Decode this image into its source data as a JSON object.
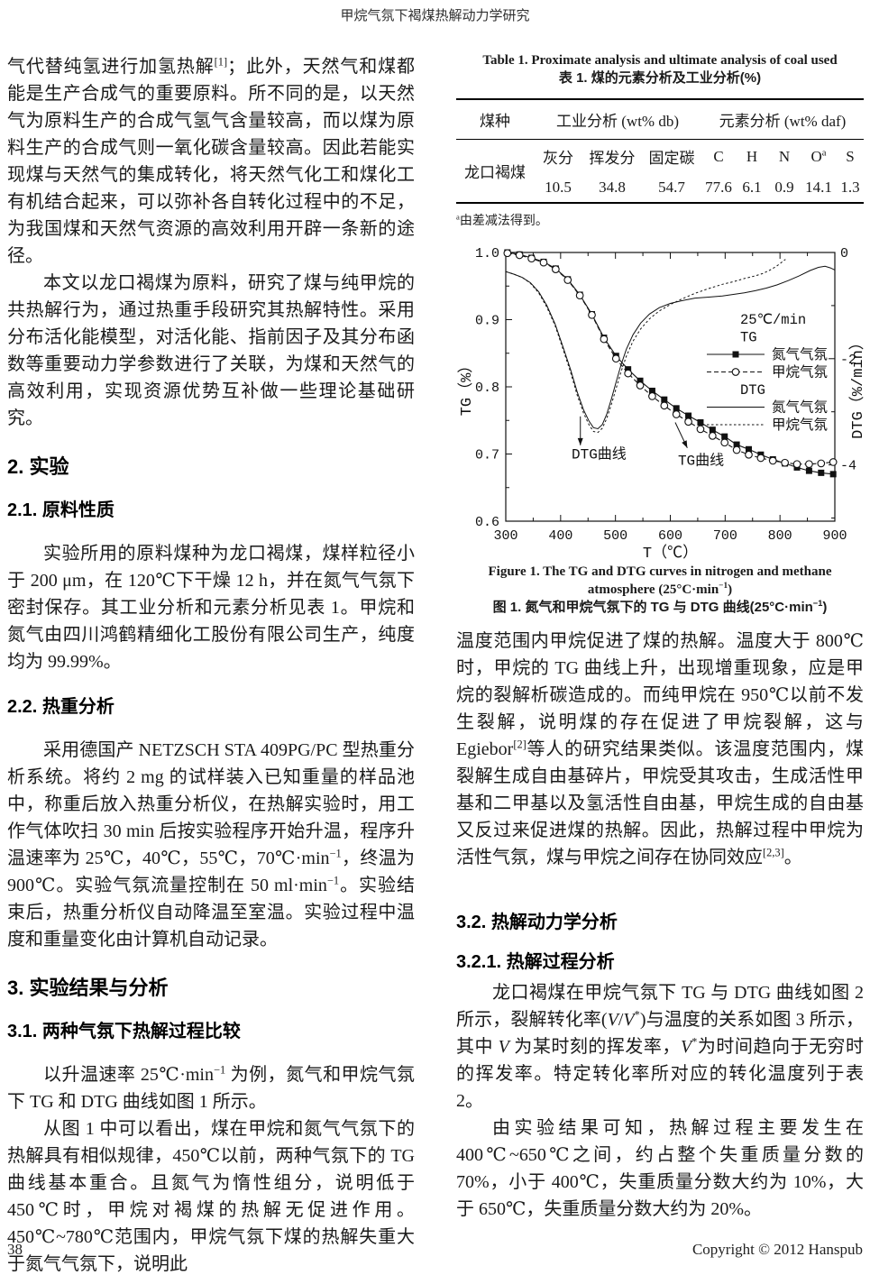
{
  "header": {
    "running_title": "甲烷气氛下褐煤热解动力学研究"
  },
  "left": {
    "p1": "气代替纯氢进行加氢热解^{[1]}；此外，天然气和煤都能是生产合成气的重要原料。所不同的是，以天然气为原料生产的合成气氢气含量较高，而以煤为原料生产的合成气则一氧化碳含量较高。因此若能实现煤与天然气的集成转化，将天然气化工和煤化工有机结合起来，可以弥补各自转化过程中的不足，为我国煤和天然气资源的高效利用开辟一条新的途径。",
    "p2": "本文以龙口褐煤为原料，研究了煤与纯甲烷的共热解行为，通过热重手段研究其热解特性。采用分布活化能模型，对活化能、指前因子及其分布函数等重要动力学参数进行了关联，为煤和天然气的高效利用，实现资源优势互补做一些理论基础研究。",
    "h2": "2. 实验",
    "h2_1": "2.1. 原料性质",
    "p3": "实验所用的原料煤种为龙口褐煤，煤样粒径小于 200 μm，在 120℃下干燥 12 h，并在氮气气氛下密封保存。其工业分析和元素分析见表 1。甲烷和氮气由四川鸿鹤精细化工股份有限公司生产，纯度均为 99.99%。",
    "h2_2": "2.2. 热重分析",
    "p4": "采用德国产 NETZSCH STA 409PG/PC 型热重分析系统。将约 2 mg 的试样装入已知重量的样品池中，称重后放入热重分析仪，在热解实验时，用工作气体吹扫 30 min 后按实验程序开始升温，程序升温速率为 25℃，40℃，55℃，70℃·min^{−1}，终温为 900℃。实验气氛流量控制在 50 ml·min^{−1}。实验结束后，热重分析仪自动降温至室温。实验过程中温度和重量变化由计算机自动记录。",
    "h3": "3. 实验结果与分析",
    "h3_1": "3.1. 两种气氛下热解过程比较",
    "p5": "以升温速率 25℃·min^{−1} 为例，氮气和甲烷气氛下 TG 和 DTG 曲线如图 1 所示。",
    "p6": "从图 1 中可以看出，煤在甲烷和氮气气氛下的热解具有相似规律，450℃以前，两种气氛下的 TG 曲线基本重合。且氮气为惰性组分，说明低于 450℃时，甲烷对褐煤的热解无促进作用。450℃~780℃范围内，甲烷气氛下煤的热解失重大于氮气气氛下，说明此"
  },
  "table1": {
    "caption_en": "Table 1. Proximate analysis and ultimate analysis of coal used",
    "caption_zh": "表 1. 煤的元素分析及工业分析(%)",
    "col_groups": [
      "煤种",
      "工业分析 (wt% db)",
      "元素分析 (wt% daf)"
    ],
    "sub_headers": [
      "灰分",
      "挥发分",
      "固定碳",
      "C",
      "H",
      "N",
      "O^{a}",
      "S"
    ],
    "row_label": "龙口褐煤",
    "values": [
      "10.5",
      "34.8",
      "54.7",
      "77.6",
      "6.1",
      "0.9",
      "14.1",
      "1.3"
    ],
    "footnote": "^{a}由差减法得到。"
  },
  "figure1": {
    "caption_en": "Figure 1. The TG and DTG curves in nitrogen and methane atmosphere (25°C·min^{−1})",
    "caption_zh": "图 1. 氮气和甲烷气氛下的 TG 与 DTG 曲线(25°C·min^{−1})"
  },
  "right": {
    "p1": "温度范围内甲烷促进了煤的热解。温度大于 800℃时，甲烷的 TG 曲线上升，出现增重现象，应是甲烷的裂解析碳造成的。而纯甲烷在 950℃以前不发生裂解，说明煤的存在促进了甲烷裂解，这与 Egiebor^{[2]}等人的研究结果类似。该温度范围内，煤裂解生成自由基碎片，甲烷受其攻击，生成活性甲基和二甲基以及氢活性自由基，甲烷生成的自由基又反过来促进煤的热解。因此，热解过程中甲烷为活性气氛，煤与甲烷之间存在协同效应^{[2,3]}。",
    "h3_2": "3.2. 热解动力学分析",
    "h3_2_1": "3.2.1. 热解过程分析",
    "p2": "龙口褐煤在甲烷气氛下 TG 与 DTG 曲线如图 2 所示，裂解转化率(~{V}/~{V}^{*})与温度的关系如图 3 所示，其中 ~{V} 为某时刻的挥发率，~{V}^{*}为时间趋向于无穷时的挥发率。特定转化率所对应的转化温度列于表 2。",
    "p3": "由实验结果可知，热解过程主要发生在 400℃~650℃之间，约占整个失重质量分数的 70%，小于 400℃，失重质量分数大约为 10%，大于 650℃，失重质量分数大约为 20%。"
  },
  "footer": {
    "page_number": "38",
    "copyright": "Copyright © 2012 Hanspub"
  },
  "chart_data": {
    "type": "line",
    "xlabel": "T（℃）",
    "ylabel_left": "TG（%）",
    "ylabel_right": "DTG（%/min）",
    "xlim": [
      300,
      900
    ],
    "x_ticks": [
      300,
      400,
      500,
      600,
      700,
      800,
      900
    ],
    "x_minor": 50,
    "ylim_left": [
      0.6,
      1.0
    ],
    "y_ticks_left": [
      0.6,
      0.7,
      0.8,
      0.9,
      1.0
    ],
    "y_minor_left": 0.05,
    "ylim_right": [
      -5.06,
      0
    ],
    "y_ticks_right": [
      0,
      -2,
      -4
    ],
    "y_minor_right": 1,
    "grid": false,
    "legend": {
      "position": "inside-right",
      "rows": [
        {
          "label": "25℃/min",
          "type": "text"
        },
        {
          "label": "TG",
          "type": "text"
        },
        {
          "label": "氮气气氛",
          "marker": "square",
          "line": "solid"
        },
        {
          "label": "甲烷气氛",
          "marker": "circle",
          "line": "dash"
        },
        {
          "label": "DTG",
          "type": "text"
        },
        {
          "label": "氮气气氛",
          "line": "solid"
        },
        {
          "label": "甲烷气氛",
          "line": "dot"
        }
      ]
    },
    "series": [
      {
        "name": "TG 氮气气氛",
        "axis": "left",
        "marker": "square",
        "line": "solid",
        "x": [
          303,
          325,
          347,
          369,
          391,
          413,
          435,
          457,
          479,
          501,
          523,
          545,
          567,
          589,
          611,
          633,
          655,
          677,
          699,
          721,
          743,
          765,
          787,
          809,
          831,
          853,
          875,
          897
        ],
        "y": [
          1.0,
          0.997,
          0.992,
          0.986,
          0.976,
          0.96,
          0.937,
          0.908,
          0.873,
          0.846,
          0.826,
          0.809,
          0.794,
          0.781,
          0.768,
          0.757,
          0.747,
          0.736,
          0.726,
          0.714,
          0.707,
          0.699,
          0.692,
          0.686,
          0.68,
          0.675,
          0.672,
          0.67
        ]
      },
      {
        "name": "TG 甲烷气氛",
        "axis": "left",
        "marker": "circle",
        "line": "dash",
        "x": [
          303,
          325,
          347,
          369,
          391,
          413,
          435,
          457,
          479,
          501,
          523,
          545,
          567,
          589,
          611,
          633,
          655,
          677,
          699,
          721,
          743,
          765,
          787,
          809,
          831,
          853,
          875,
          897
        ],
        "y": [
          0.999,
          0.996,
          0.991,
          0.985,
          0.975,
          0.959,
          0.936,
          0.907,
          0.871,
          0.842,
          0.82,
          0.802,
          0.786,
          0.772,
          0.759,
          0.748,
          0.737,
          0.727,
          0.717,
          0.706,
          0.699,
          0.694,
          0.69,
          0.687,
          0.685,
          0.685,
          0.686,
          0.688
        ]
      },
      {
        "name": "DTG 氮气气氛",
        "axis": "right",
        "marker": "none",
        "line": "solid",
        "x": [
          300,
          315,
          330,
          345,
          360,
          375,
          390,
          405,
          418,
          430,
          442,
          452,
          460,
          468,
          476,
          484,
          492,
          500,
          510,
          520,
          532,
          546,
          562,
          580,
          600,
          620,
          645,
          670,
          695,
          715,
          735,
          755,
          775,
          795,
          815,
          835,
          855,
          870,
          882,
          892,
          900
        ],
        "y": [
          -0.36,
          -0.41,
          -0.47,
          -0.57,
          -0.74,
          -1.0,
          -1.35,
          -1.8,
          -2.2,
          -2.62,
          -2.97,
          -3.18,
          -3.3,
          -3.32,
          -3.24,
          -3.05,
          -2.78,
          -2.48,
          -2.12,
          -1.82,
          -1.55,
          -1.33,
          -1.16,
          -1.04,
          -0.96,
          -0.91,
          -0.86,
          -0.84,
          -0.82,
          -0.79,
          -0.76,
          -0.72,
          -0.67,
          -0.61,
          -0.53,
          -0.44,
          -0.34,
          -0.28,
          -0.26,
          -0.29,
          -0.33
        ]
      },
      {
        "name": "DTG 甲烷气氛",
        "axis": "right",
        "marker": "none",
        "line": "dot",
        "x": [
          300,
          315,
          330,
          345,
          360,
          375,
          390,
          405,
          418,
          430,
          442,
          452,
          460,
          468,
          476,
          484,
          492,
          500,
          510,
          520,
          532,
          546,
          562,
          580,
          600,
          620,
          645,
          670,
          695,
          715,
          735,
          755,
          770,
          782,
          792,
          800,
          806,
          810
        ],
        "y": [
          -0.36,
          -0.41,
          -0.47,
          -0.58,
          -0.76,
          -1.03,
          -1.38,
          -1.84,
          -2.25,
          -2.68,
          -3.03,
          -3.25,
          -3.37,
          -3.39,
          -3.31,
          -3.13,
          -2.88,
          -2.6,
          -2.25,
          -1.95,
          -1.67,
          -1.44,
          -1.25,
          -1.1,
          -0.98,
          -0.88,
          -0.77,
          -0.68,
          -0.6,
          -0.55,
          -0.49,
          -0.44,
          -0.39,
          -0.33,
          -0.27,
          -0.21,
          -0.16,
          -0.13
        ]
      }
    ],
    "annotations": [
      {
        "text": "DTG曲线",
        "tx": 470,
        "ty": 0.693,
        "ax1": 436,
        "ay1": 0.756,
        "ax2": 436,
        "ay2": 0.713
      },
      {
        "text": "TG曲线",
        "tx": 656,
        "ty": 0.684,
        "ax1": 609,
        "ay1": 0.747,
        "ax2": 631,
        "ay2": 0.709
      }
    ]
  }
}
